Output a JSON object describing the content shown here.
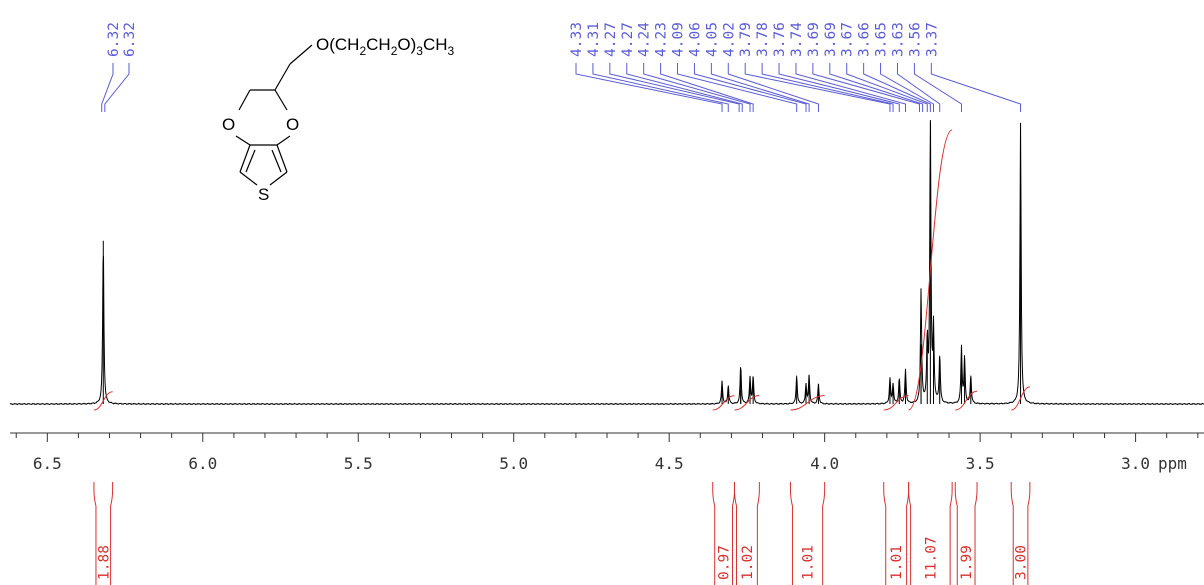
{
  "chart_data": {
    "type": "line",
    "title": "",
    "xlabel": "ppm",
    "ylabel": "",
    "x_reversed": true,
    "xlim": [
      6.62,
      2.78
    ],
    "x_ticks": [
      6.5,
      6.0,
      5.5,
      5.0,
      4.5,
      4.0,
      3.5,
      3.0
    ],
    "x_tick_labels": [
      "6.5",
      "6.0",
      "5.5",
      "5.0",
      "4.5",
      "4.0",
      "3.5",
      "3.0"
    ],
    "grid": false,
    "legend": "none",
    "structure": {
      "substituent": "O(CH2CH2O)3CH3",
      "atoms": [
        "O",
        "O",
        "S"
      ]
    },
    "peaks": [
      {
        "ppm": 6.32,
        "intensity": 0.575
      },
      {
        "ppm": 4.33,
        "intensity": 0.08
      },
      {
        "ppm": 4.31,
        "intensity": 0.065
      },
      {
        "ppm": 4.27,
        "intensity": 0.09
      },
      {
        "ppm": 4.27,
        "intensity": 0.05
      },
      {
        "ppm": 4.24,
        "intensity": 0.095
      },
      {
        "ppm": 4.23,
        "intensity": 0.095
      },
      {
        "ppm": 4.09,
        "intensity": 0.1
      },
      {
        "ppm": 4.06,
        "intensity": 0.07
      },
      {
        "ppm": 4.05,
        "intensity": 0.1
      },
      {
        "ppm": 4.02,
        "intensity": 0.07
      },
      {
        "ppm": 3.79,
        "intensity": 0.09
      },
      {
        "ppm": 3.78,
        "intensity": 0.07
      },
      {
        "ppm": 3.76,
        "intensity": 0.09
      },
      {
        "ppm": 3.74,
        "intensity": 0.12
      },
      {
        "ppm": 3.69,
        "intensity": 0.21
      },
      {
        "ppm": 3.69,
        "intensity": 0.19
      },
      {
        "ppm": 3.67,
        "intensity": 0.22
      },
      {
        "ppm": 3.66,
        "intensity": 1.0
      },
      {
        "ppm": 3.65,
        "intensity": 0.26
      },
      {
        "ppm": 3.63,
        "intensity": 0.17
      },
      {
        "ppm": 3.56,
        "intensity": 0.2
      },
      {
        "ppm": 3.55,
        "intensity": 0.16
      },
      {
        "ppm": 3.53,
        "intensity": 0.1
      },
      {
        "ppm": 3.37,
        "intensity": 0.99
      }
    ],
    "peak_labels": [
      "6.32",
      "6.32",
      "4.33",
      "4.31",
      "4.27",
      "4.27",
      "4.24",
      "4.23",
      "4.09",
      "4.06",
      "4.05",
      "4.02",
      "3.79",
      "3.78",
      "3.76",
      "3.74",
      "3.69",
      "3.69",
      "3.67",
      "3.66",
      "3.65",
      "3.63",
      "3.56",
      "3.37"
    ],
    "peak_label_ppm": [
      6.325,
      6.315,
      4.33,
      4.31,
      4.275,
      4.265,
      4.24,
      4.23,
      4.09,
      4.06,
      4.05,
      4.02,
      3.79,
      3.78,
      3.76,
      3.74,
      3.695,
      3.685,
      3.67,
      3.66,
      3.65,
      3.63,
      3.56,
      3.37
    ],
    "integrals": [
      {
        "from": 6.35,
        "to": 6.29,
        "value": "1.88"
      },
      {
        "from": 4.36,
        "to": 4.29,
        "value": "0.97"
      },
      {
        "from": 4.29,
        "to": 4.21,
        "value": "1.02"
      },
      {
        "from": 4.11,
        "to": 4.0,
        "value": "1.01"
      },
      {
        "from": 3.81,
        "to": 3.73,
        "value": "1.01"
      },
      {
        "from": 3.73,
        "to": 3.59,
        "value": "11.07"
      },
      {
        "from": 3.58,
        "to": 3.51,
        "value": "1.99"
      },
      {
        "from": 3.4,
        "to": 3.34,
        "value": "3.00"
      }
    ],
    "colors": {
      "spectrum": "#000000",
      "peak_labels": "#5b5bd6",
      "integrals": "#d83030",
      "axis": "#333333"
    }
  }
}
